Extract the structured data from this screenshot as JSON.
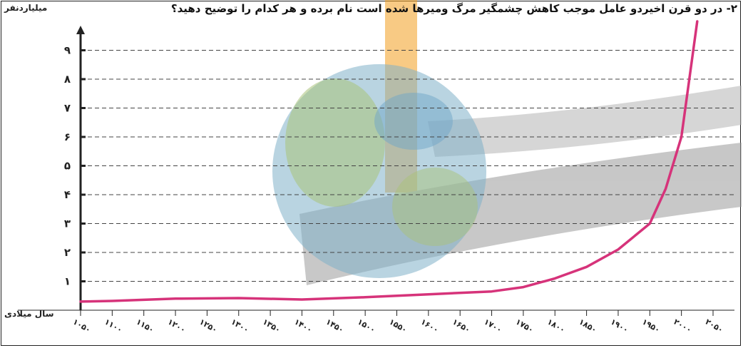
{
  "question": "۲- در دو قرن اخیردو عامل موجب کاهش چشمگیر مرگ ومیرها شده است نام برده و هر کدام را توضیح دهید؟",
  "chart_data": {
    "type": "line",
    "ylabel": "میلیاردنفر",
    "xlabel": "سال میلادی",
    "x_tick_labels": [
      "۱۰۵۰",
      "۱۱۰۰",
      "۱۱۵۰",
      "۱۲۰۰",
      "۱۲۵۰",
      "۱۳۰۰",
      "۱۳۵۰",
      "۱۴۰۰",
      "۱۴۵۰",
      "۱۵۰۰",
      "۱۵۵۰",
      "۱۶۰۰",
      "۱۶۵۰",
      "۱۷۰۰",
      "۱۷۵۰",
      "۱۸۰۰",
      "۱۸۵۰",
      "۱۹۰۰",
      "۱۹۵۰",
      "۲۰۰۰",
      "۲۰۵۰"
    ],
    "y_tick_labels": [
      "۱",
      "۲",
      "۳",
      "۴",
      "۵",
      "۶",
      "۷",
      "۸",
      "۹"
    ],
    "xlim": [
      1050,
      2050
    ],
    "ylim": [
      0,
      9
    ],
    "grid": true,
    "series": [
      {
        "color": "#d6337a",
        "x": [
          1050,
          1100,
          1200,
          1300,
          1400,
          1500,
          1600,
          1700,
          1750,
          1800,
          1850,
          1900,
          1950,
          1975,
          2000,
          2025
        ],
        "y": [
          0.3,
          0.32,
          0.4,
          0.42,
          0.37,
          0.45,
          0.55,
          0.65,
          0.8,
          1.1,
          1.5,
          2.1,
          3.0,
          4.2,
          6.0,
          10.0
        ]
      }
    ]
  }
}
